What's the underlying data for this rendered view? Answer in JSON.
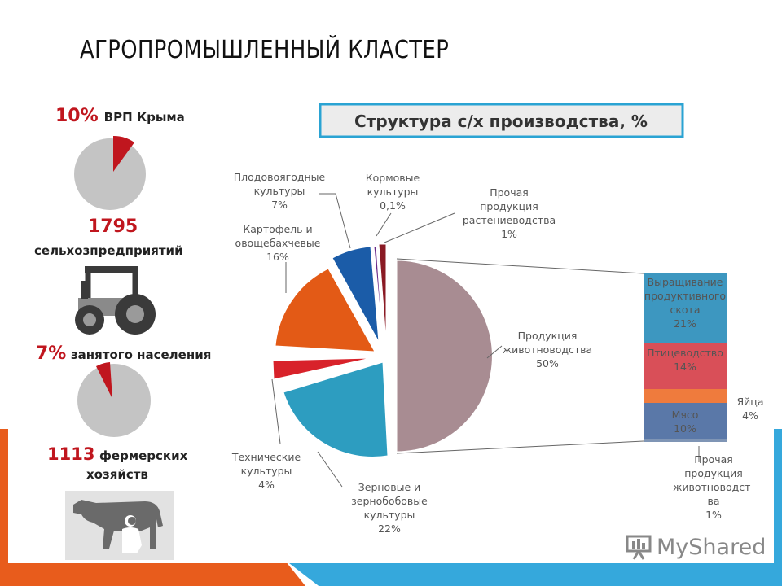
{
  "slide": {
    "title": "АГРОПРОМЫШЛЕННЫЙ КЛАСТЕР"
  },
  "stats": [
    {
      "value": "10%",
      "text": "ВРП Крыма",
      "share": 10
    },
    {
      "value": "1795",
      "text": "сельхозпредприятий"
    },
    {
      "value": "7%",
      "text": "занятого населения",
      "share": 7
    },
    {
      "value": "1113",
      "text": "фермерских хозяйств",
      "text_line1": "фермерских",
      "text_line2": "хозяйств"
    }
  ],
  "icons": [
    "pie-10-icon",
    "tractor-icon",
    "pie-7-icon",
    "cow-milking-icon"
  ],
  "colors": {
    "stat_red": "#c0161e",
    "pie_grey": "#c4c4c4",
    "title_box_border": "#2aa3d3",
    "left_bar": "#e85c1c",
    "right_bar": "#35a8dc"
  },
  "chart_data": {
    "type": "pie",
    "title": "Структура с/х производства, %",
    "slices": [
      {
        "label": "Продукция животноводства",
        "pct_text": "50%",
        "value": 50,
        "color": "#a88c92"
      },
      {
        "label": "Зерновые и зернобобовые культуры",
        "pct_text": "22%",
        "value": 22,
        "color": "#2d9dc0"
      },
      {
        "label": "Технические культуры",
        "pct_text": "4%",
        "value": 4,
        "color": "#d8222a"
      },
      {
        "label": "Картофель и овощебахчевые",
        "pct_text": "16%",
        "value": 16,
        "color": "#e35a16"
      },
      {
        "label": "Плодовоягодные культуры",
        "pct_text": "7%",
        "value": 7,
        "color": "#1b5ca8"
      },
      {
        "label": "Кормовые культуры",
        "pct_text": "0,1%",
        "value": 0.1,
        "color": "#6a2a8a"
      },
      {
        "label": "Прочая продукция растениеводства",
        "pct_text": "1%",
        "value": 1,
        "color": "#8a1a24"
      }
    ],
    "breakdown": {
      "of": "Продукция животноводства",
      "items": [
        {
          "label": "Выращивание продуктивного скота",
          "pct_text": "21%",
          "value": 21,
          "color": "#3d97c0"
        },
        {
          "label": "Птицеводство",
          "pct_text": "14%",
          "value": 14,
          "color": "#d94f58"
        },
        {
          "label": "Яйца",
          "pct_text": "4%",
          "value": 4,
          "color": "#ef7b3d"
        },
        {
          "label": "Мясо",
          "pct_text": "10%",
          "value": 10,
          "color": "#5a78a8"
        },
        {
          "label": "Прочая продукция животноводства",
          "pct_text": "1%",
          "value": 1,
          "color": "#7f95b5"
        }
      ]
    },
    "labels": {
      "plod": [
        "Плодовоягодные",
        "культуры",
        "7%"
      ],
      "korm": [
        "Кормовые",
        "культуры",
        "0,1%"
      ],
      "proch_rast": [
        "Прочая",
        "продукция",
        "растениеводства",
        "1%"
      ],
      "kart": [
        "Картофель и",
        "овощебахчевые",
        "16%"
      ],
      "zhiv": [
        "Продукция",
        "животноводства",
        "50%"
      ],
      "tech": [
        "Технические",
        "культуры",
        "4%"
      ],
      "zern": [
        "Зерновые и",
        "зернобобовые",
        "культуры",
        "22%"
      ],
      "vyr": [
        "Выращивание",
        "продуктивного",
        "скота",
        "21%"
      ],
      "ptic": [
        "Птицеводство",
        "14%"
      ],
      "yaic": [
        "Яйца",
        "4%"
      ],
      "myaso": [
        "Мясо",
        "10%"
      ],
      "proch_zhiv": [
        "Прочая",
        "продукция",
        "животноводст-",
        "ва",
        "1%"
      ]
    }
  },
  "watermark": {
    "text": "MyShared"
  }
}
